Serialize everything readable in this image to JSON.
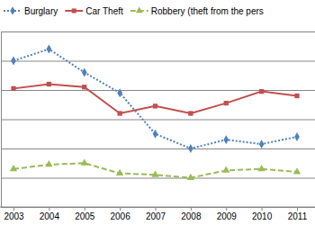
{
  "chart_data": {
    "type": "line",
    "categories": [
      "2003",
      "2004",
      "2005",
      "2006",
      "2007",
      "2008",
      "2009",
      "2010",
      "2011"
    ],
    "series": [
      {
        "name": "Burglary",
        "color": "#4f81bd",
        "marker": "diamond",
        "line_style": "dotted",
        "values": [
          5.0,
          5.4,
          4.6,
          3.9,
          2.5,
          2.0,
          2.3,
          2.15,
          2.4
        ]
      },
      {
        "name": "Car Theft",
        "color": "#c0504d",
        "marker": "square",
        "line_style": "solid",
        "values": [
          4.05,
          4.2,
          4.1,
          3.2,
          3.45,
          3.2,
          3.55,
          3.95,
          3.8
        ]
      },
      {
        "name": "Robbery (theft from the pers",
        "color": "#9bbb59",
        "marker": "triangle",
        "line_style": "dashed",
        "values": [
          1.3,
          1.45,
          1.5,
          1.15,
          1.1,
          1.0,
          1.25,
          1.3,
          1.2
        ]
      }
    ],
    "ylim": [
      0,
      6
    ],
    "yticks": [
      0,
      1,
      2,
      3,
      4,
      5,
      6
    ],
    "grid": true,
    "legend": "top",
    "tick_labels": "x"
  }
}
